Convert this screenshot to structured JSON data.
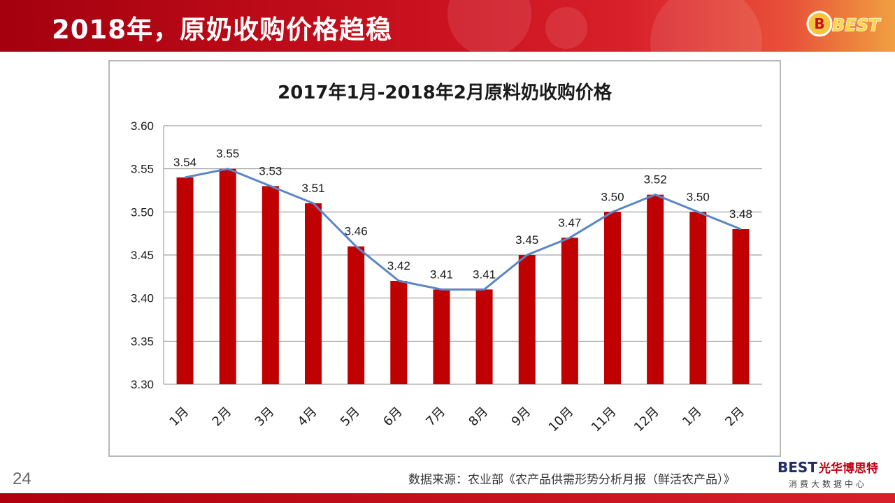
{
  "header": {
    "title": "2018年，原奶收购价格趋稳",
    "logo_text": "BEST"
  },
  "chart_data": {
    "type": "bar",
    "title": "2017年1月-2018年2月原料奶收购价格",
    "categories": [
      "1月",
      "2月",
      "3月",
      "4月",
      "5月",
      "6月",
      "7月",
      "8月",
      "9月",
      "10月",
      "11月",
      "12月",
      "1月",
      "2月"
    ],
    "series": [
      {
        "type": "bar",
        "values": [
          3.54,
          3.55,
          3.53,
          3.51,
          3.46,
          3.42,
          3.41,
          3.41,
          3.45,
          3.47,
          3.5,
          3.52,
          3.5,
          3.48
        ],
        "color": "#c00000"
      },
      {
        "type": "line",
        "values": [
          3.54,
          3.55,
          3.53,
          3.51,
          3.46,
          3.42,
          3.41,
          3.41,
          3.45,
          3.47,
          3.5,
          3.52,
          3.5,
          3.48
        ],
        "color": "#5b86c6"
      }
    ],
    "data_labels": [
      "3.54",
      "3.55",
      "3.53",
      "3.51",
      "3.46",
      "3.42",
      "3.41",
      "3.41",
      "3.45",
      "3.47",
      "3.50",
      "3.52",
      "3.50",
      "3.48"
    ],
    "y_ticks": [
      "3.30",
      "3.35",
      "3.40",
      "3.45",
      "3.50",
      "3.55",
      "3.60"
    ],
    "ylim": [
      3.3,
      3.6
    ],
    "grid": true,
    "legend": "none"
  },
  "footer": {
    "page_number": "24",
    "source": "数据来源：农业部《农产品供需形势分析月报（鲜活农产品）》",
    "brand_best": "BEST",
    "brand_cn": "光华博思特",
    "brand_tagline": "消费大数据中心"
  }
}
